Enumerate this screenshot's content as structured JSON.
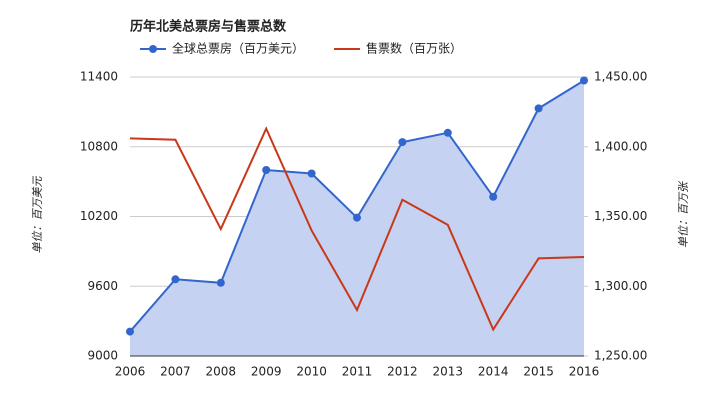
{
  "chart_data": {
    "type": "line",
    "title": "历年北美总票房与售票总数",
    "y_label": "单位：百万美元",
    "y2_label": "单位：百万张",
    "categories": [
      "2006",
      "2007",
      "2008",
      "2009",
      "2010",
      "2011",
      "2012",
      "2013",
      "2014",
      "2015",
      "2016"
    ],
    "series": [
      {
        "name": "全球总票房（百万美元）",
        "color": "#3366cc",
        "area_color": "#c5d2f1",
        "markers": true,
        "values": [
          9210,
          9660,
          9630,
          10600,
          10570,
          10190,
          10840,
          10920,
          10370,
          11130,
          11370
        ]
      },
      {
        "name": "售票数（百万张）",
        "color": "#c9381a",
        "axis": "y2",
        "values": [
          1406,
          1405,
          1341,
          1413,
          1340,
          1283,
          1362,
          1344,
          1269,
          1320,
          1321
        ]
      }
    ],
    "ylim": [
      9000,
      11400
    ],
    "yticks": [
      9000,
      9600,
      10200,
      10800,
      11400
    ],
    "y2lim": [
      1250,
      1450
    ],
    "y2ticks": [
      {
        "value": 1250,
        "label": "1,250.00"
      },
      {
        "value": 1300,
        "label": "1,300.00"
      },
      {
        "value": 1350,
        "label": "1,350.00"
      },
      {
        "value": 1400,
        "label": "1,400.00"
      },
      {
        "value": 1450,
        "label": "1,450.00"
      }
    ],
    "grid": true,
    "legend": "top"
  }
}
